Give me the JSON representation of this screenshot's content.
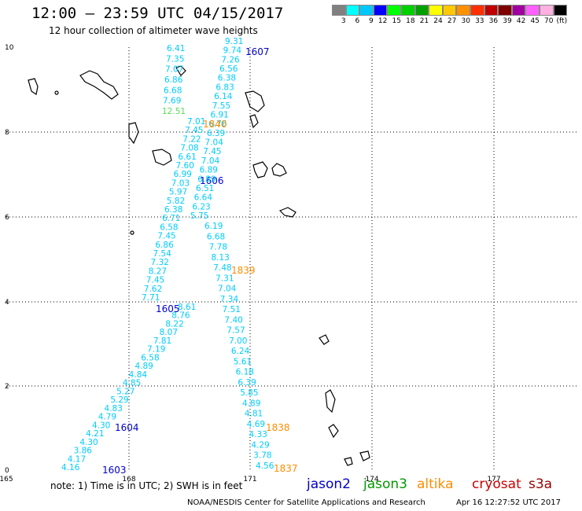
{
  "header": {
    "title": "12:00 – 23:59 UTC 04/15/2017",
    "subtitle": "12 hour collection of altimeter wave heights"
  },
  "color_scale": {
    "colors": [
      "#808080",
      "#00ffff",
      "#00c8ff",
      "#0000ff",
      "#00ff00",
      "#00d000",
      "#00a000",
      "#ffff00",
      "#ffc800",
      "#ff9000",
      "#ff3000",
      "#c00000",
      "#800000",
      "#a000a0",
      "#ff60ff",
      "#ffb0e0",
      "#000000"
    ],
    "labels": [
      "3",
      "6",
      "9",
      "12",
      "15",
      "18",
      "21",
      "24",
      "27",
      "30",
      "33",
      "36",
      "39",
      "42",
      "45",
      "70",
      "(ft)"
    ]
  },
  "axes": {
    "x_labels": [
      "165",
      "168",
      "171",
      "174",
      "177"
    ],
    "y_labels": [
      "0",
      "2",
      "4",
      "6",
      "8",
      "10"
    ]
  },
  "tracks": [
    {
      "id": "1603",
      "color": "#0000cc",
      "values": [
        "4.16",
        "4.17",
        "3.86",
        "4.30",
        "4.21",
        "4.30",
        "4.79",
        "4.83",
        "5.29",
        "5.27",
        "4.85",
        "4.84",
        "4.89",
        "6.58",
        "7.19",
        "7.81",
        "8.07",
        "8.22",
        "8.76",
        "8.61"
      ]
    },
    {
      "id": "1604",
      "color": "#0000cc"
    },
    {
      "id": "1605",
      "color": "#0000cc",
      "values": [
        "7.71",
        "7.62",
        "7.45",
        "8.27",
        "7.32",
        "7.54",
        "6.86",
        "7.45",
        "6.58",
        "6.71",
        "6.38",
        "5.82",
        "5.97",
        "7.03",
        "6.99",
        "7.60",
        "6.61",
        "7.08",
        "7.22",
        "7.45",
        "7.01"
      ]
    },
    {
      "id": "1606",
      "color": "#0000cc",
      "values": [
        "12.51",
        "7.69",
        "6.68",
        "6.86",
        "7.07",
        "7.35",
        "6.41"
      ]
    },
    {
      "id": "1607",
      "color": "#0000cc",
      "values": [
        "9.31",
        "9.74",
        "7.26",
        "6.56",
        "6.38",
        "6.83",
        "6.14",
        "7.55",
        "6.91",
        "6.76",
        "6.39",
        "7.04",
        "7.45",
        "7.04",
        "6.89",
        "6.89",
        "6.51",
        "6.64",
        "6.23",
        "5.75"
      ]
    },
    {
      "id": "1837",
      "color": "#ff8c00",
      "values": [
        "4.56",
        "3.78",
        "4.29",
        "4.33",
        "4.69",
        "4.81",
        "4.89",
        "5.85",
        "6.39",
        "6.18",
        "5.61",
        "6.24",
        "7.00",
        "7.57",
        "7.40",
        "7.51",
        "7.34",
        "7.04",
        "7.31",
        "7.48",
        "8.13",
        "7.78",
        "6.68",
        "6.19"
      ]
    },
    {
      "id": "1838",
      "color": "#ff8c00"
    },
    {
      "id": "1839",
      "color": "#ff8c00"
    },
    {
      "id": "1840",
      "color": "#ff8c00"
    }
  ],
  "footer": {
    "note": "note:  1) Time is in UTC;  2) SWH is in feet",
    "satellites": [
      {
        "name": "jason2",
        "color": "#0000cc"
      },
      {
        "name": "jason3",
        "color": "#009900"
      },
      {
        "name": "altika",
        "color": "#ff8c00"
      },
      {
        "name": "cryosat",
        "color": "#cc0000"
      },
      {
        "name": "s3a",
        "color": "#990000"
      }
    ],
    "credit": "NOAA/NESDIS Center for Satellite Applications and Research",
    "timestamp": "Apr 16 12:27:52 UTC 2017"
  }
}
